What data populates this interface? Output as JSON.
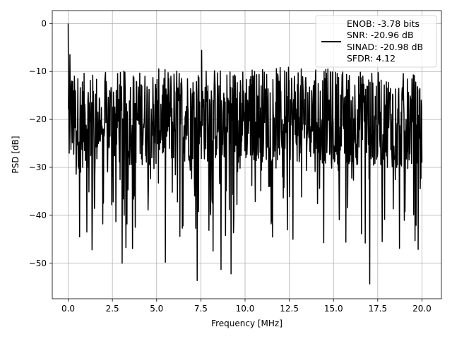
{
  "chart_data": {
    "type": "line",
    "xlabel": "Frequency [MHz]",
    "ylabel": "PSD [dB]",
    "xlim": [
      -0.9,
      21.1
    ],
    "ylim": [
      -57.4,
      2.7
    ],
    "xticks": [
      0.0,
      2.5,
      5.0,
      7.5,
      10.0,
      12.5,
      15.0,
      17.5,
      20.0
    ],
    "xtick_labels": [
      "0.0",
      "2.5",
      "5.0",
      "7.5",
      "10.0",
      "12.5",
      "15.0",
      "17.5",
      "20.0"
    ],
    "yticks": [
      0,
      -10,
      -20,
      -30,
      -40,
      -50
    ],
    "ytick_labels": [
      "0",
      "−10",
      "−20",
      "−30",
      "−40",
      "−50"
    ],
    "grid": true,
    "legend_position": "top-right",
    "line_color": "#000000",
    "legend": {
      "entries": [
        "ENOB: -3.78 bits",
        "SNR: -20.96 dB",
        "SINAD: -20.98 dB",
        "SFDR: 4.12"
      ]
    },
    "series": [
      {
        "x_range": [
          0.0,
          20.0
        ],
        "points": 1024,
        "baseline_db": -21,
        "features": [
          {
            "x": 0.0,
            "y": 0.0
          },
          {
            "x": 0.1,
            "y": -6.5
          },
          {
            "x": 0.2,
            "y": -12.0
          },
          {
            "x": 0.65,
            "y": -44.5
          },
          {
            "x": 1.05,
            "y": -43.5
          },
          {
            "x": 1.35,
            "y": -47.2
          },
          {
            "x": 1.95,
            "y": -41.8
          },
          {
            "x": 3.05,
            "y": -50.0
          },
          {
            "x": 3.8,
            "y": -42.5
          },
          {
            "x": 5.5,
            "y": -49.8
          },
          {
            "x": 7.3,
            "y": -53.6
          },
          {
            "x": 7.55,
            "y": -5.6
          },
          {
            "x": 8.65,
            "y": -51.3
          },
          {
            "x": 8.9,
            "y": -44.2
          },
          {
            "x": 9.2,
            "y": -52.2
          },
          {
            "x": 12.7,
            "y": -45.0
          },
          {
            "x": 14.45,
            "y": -45.7
          },
          {
            "x": 15.7,
            "y": -45.6
          },
          {
            "x": 17.05,
            "y": -54.3
          },
          {
            "x": 17.75,
            "y": -45.5
          },
          {
            "x": 19.6,
            "y": -45.3
          }
        ]
      }
    ]
  }
}
